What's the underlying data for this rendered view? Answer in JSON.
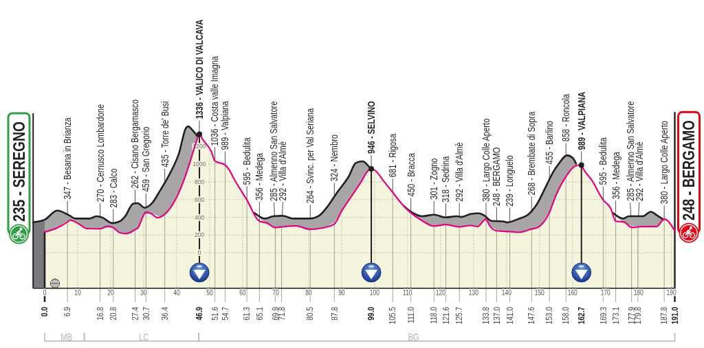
{
  "chart_data": {
    "type": "line",
    "xlim": [
      -3.5,
      191
    ],
    "ylim": [
      -400,
      2800
    ],
    "xticks": [
      0,
      10,
      20,
      30,
      40,
      50,
      60,
      70,
      80,
      90,
      100,
      110,
      120,
      130,
      140,
      150,
      160,
      170,
      180,
      190
    ],
    "yticks": [
      0,
      200,
      400,
      600,
      800,
      1000,
      1200
    ],
    "x2lim": [
      -3.5,
      191
    ],
    "x2ticks": [
      {
        "value": 0,
        "label": "0.0"
      },
      6.9,
      16.8,
      20.8,
      27.4,
      30.7,
      36.4,
      46.9,
      51.6,
      54.7,
      61.3,
      65.1,
      69.9,
      71.8,
      80.5,
      87.8,
      {
        "value": 99,
        "label": "99.0"
      },
      105.5,
      {
        "value": 111,
        "label": "111.0"
      },
      {
        "value": 118,
        "label": "118.0"
      },
      121.6,
      125.7,
      133.8,
      {
        "value": 137,
        "label": "137.0"
      },
      {
        "value": 141,
        "label": "141.0"
      },
      147.6,
      {
        "value": 153,
        "label": "153.0"
      },
      {
        "value": 158,
        "label": "158.0"
      },
      162.7,
      169.3,
      173.1,
      177.9,
      179.8,
      187.8,
      {
        "value": 191,
        "label": "191.0"
      }
    ],
    "grid": true,
    "series": [
      {
        "color": "#231f20",
        "x": [
          -3.5,
          0,
          3.8,
          7.3,
          9.4,
          13.6,
          15.7,
          17.4,
          20.5,
          22.6,
          24.4,
          26.8,
          28.2,
          30.3,
          32.4,
          35.1,
          37.9,
          40.7,
          42.8,
          43.5,
          44.9,
          46.3,
          47.0,
          63.6,
          66.8,
          69.3,
          72.0,
          75.5,
          80.4,
          83.2,
          85.3,
          88.7,
          92.2,
          94.3,
          96.4,
          97.8,
          98.8,
          99.5,
          108.9,
          111.0,
          114.5,
          118.0,
          121.5,
          124.9,
          126.3,
          129.1,
          131.5,
          133.3,
          135.4,
          139.2,
          140.2,
          143.7,
          146.5,
          149.3,
          152.1,
          154.2,
          155.6,
          158.4,
          160.1,
          161.1,
          162.0,
          172.3,
          175.4,
          177.1,
          181.3,
          183.7,
          185.5,
          187.6
        ],
        "values": [
          345,
          373,
          476,
          425,
          386,
          386,
          412,
          399,
          334,
          352,
          412,
          554,
          559,
          507,
          554,
          709,
          889,
          1121,
          1404,
          1425,
          1378,
          1314,
          null,
          450,
          386,
          412,
          417,
          386,
          386,
          419,
          500,
          683,
          863,
          1013,
          1031,
          992,
          950,
          null,
          527,
          463,
          412,
          430,
          399,
          412,
          404,
          437,
          445,
          420,
          360,
          352,
          342,
          384,
          430,
          554,
          760,
          914,
          992,
          1098,
          1068,
          1004,
          null,
          450,
          386,
          412,
          412,
          463,
          425,
          373
        ],
        "lower": [
          null,
          235,
          280,
          358,
          342,
          272,
          271,
          278,
          286,
          229,
          218,
          252,
          280,
          430,
          440,
          413,
          508,
          692,
          885,
          963,
          1125,
          1282,
          null,
          450,
          340,
          297,
          293,
          301,
          265,
          277,
          292,
          383,
          592,
          708,
          827,
          910,
          942,
          null,
          527,
          450,
          360,
          301,
          317,
          297,
          295,
          308,
          306,
          364,
          293,
          243,
          241,
          231,
          258,
          283,
          413,
          572,
          689,
          875,
          947,
          979,
          null,
          433,
          347,
          307,
          296,
          296,
          296,
          373
        ],
        "upper": [
          null,
          373,
          476,
          425,
          386,
          386,
          412,
          399,
          334,
          352,
          412,
          554,
          559,
          507,
          554,
          709,
          889,
          1121,
          1404,
          1425,
          1378,
          1314,
          null,
          450,
          386,
          412,
          417,
          386,
          386,
          419,
          500,
          683,
          863,
          1013,
          1031,
          992,
          950,
          null,
          527,
          463,
          412,
          430,
          399,
          412,
          404,
          437,
          445,
          420,
          360,
          352,
          342,
          384,
          430,
          554,
          760,
          914,
          992,
          1098,
          1068,
          1004,
          null,
          450,
          386,
          412,
          412,
          463,
          425,
          373
        ]
      },
      {
        "color": "#e5007e",
        "x": [
          0,
          3.8,
          6.9,
          7.7,
          10.1,
          12.9,
          16.8,
          19.1,
          20.8,
          22.6,
          24.7,
          27.4,
          28.2,
          30.7,
          32.4,
          34.1,
          36.4,
          39.3,
          42.1,
          44.2,
          45.9,
          46.9,
          48.0,
          50.5,
          51.6,
          54.7,
          56.0,
          57.4,
          61.3,
          65.1,
          67.5,
          69.9,
          71.8,
          76.2,
          80.5,
          84.6,
          87.8,
          90.1,
          92.9,
          95.7,
          98.1,
          99.0,
          100.2,
          102.7,
          105.5,
          108.2,
          111.0,
          114.5,
          118.0,
          121.6,
          125.7,
          129.1,
          131.2,
          133.8,
          134.8,
          137.0,
          141.0,
          143.7,
          147.6,
          149.3,
          153.0,
          154.9,
          158.0,
          160.8,
          162.7,
          163.2,
          166.0,
          169.3,
          171.6,
          173.1,
          175.7,
          177.9,
          179.8,
          181.3,
          185.5,
          187.8,
          191.0
        ],
        "values": [
          235,
          280,
          347,
          368,
          332,
          273,
          270,
          299,
          283,
          229,
          216,
          262,
          280,
          459,
          440,
          396,
          435,
          577,
          808,
          1040,
          1246,
          1336,
          1272,
          1143,
          1036,
          989,
          930,
          834,
          595,
          356,
          334,
          285,
          292,
          303,
          264,
          283,
          324,
          476,
          631,
          786,
          928,
          946,
          928,
          812,
          681,
          554,
          450,
          360,
          301,
          318,
          292,
          308,
          296,
          380,
          310,
          248,
          239,
          231,
          268,
          283,
          455,
          640,
          858,
          977,
          989,
          952,
          810,
          595,
          500,
          356,
          346,
          285,
          292,
          296,
          296,
          380,
          248
        ]
      }
    ],
    "ref_lines": [
      {
        "axis": "x",
        "value": 46.9,
        "color": "#231f20"
      },
      {
        "axis": "x",
        "value": 99.0,
        "color": "#231f20"
      },
      {
        "axis": "x",
        "value": 162.7,
        "color": "#231f20"
      },
      {
        "axis": "x2",
        "value": 6.9,
        "color": "#8c8c8c"
      },
      {
        "axis": "x2",
        "value": 16.8,
        "color": "#8c8c8c"
      },
      {
        "axis": "x2",
        "value": 20.8,
        "color": "#8c8c8c"
      },
      {
        "axis": "x2",
        "value": 27.4,
        "color": "#8c8c8c"
      },
      {
        "axis": "x2",
        "value": 30.7,
        "color": "#8c8c8c"
      },
      {
        "axis": "x2",
        "value": 36.4,
        "color": "#8c8c8c"
      },
      {
        "axis": "x2",
        "value": 51.6,
        "color": "#8c8c8c"
      },
      {
        "axis": "x2",
        "value": 54.7,
        "color": "#8c8c8c"
      },
      {
        "axis": "x2",
        "value": 61.3,
        "color": "#8c8c8c"
      },
      {
        "axis": "x2",
        "value": 65.1,
        "color": "#8c8c8c"
      },
      {
        "axis": "x2",
        "value": 69.9,
        "color": "#8c8c8c"
      },
      {
        "axis": "x2",
        "value": 71.8,
        "color": "#8c8c8c"
      },
      {
        "axis": "x2",
        "value": 80.5,
        "color": "#8c8c8c"
      },
      {
        "axis": "x2",
        "value": 87.8,
        "color": "#8c8c8c"
      },
      {
        "axis": "x2",
        "value": 105.5,
        "color": "#8c8c8c"
      },
      {
        "axis": "x2",
        "value": 111.0,
        "color": "#8c8c8c"
      },
      {
        "axis": "x2",
        "value": 118.0,
        "color": "#8c8c8c"
      },
      {
        "axis": "x2",
        "value": 121.6,
        "color": "#8c8c8c"
      },
      {
        "axis": "x2",
        "value": 125.7,
        "color": "#8c8c8c"
      },
      {
        "axis": "x2",
        "value": 133.8,
        "color": "#8c8c8c"
      },
      {
        "axis": "x2",
        "value": 137.0,
        "color": "#8c8c8c"
      },
      {
        "axis": "x2",
        "value": 141.0,
        "color": "#8c8c8c"
      },
      {
        "axis": "x2",
        "value": 147.6,
        "color": "#8c8c8c"
      },
      {
        "axis": "x2",
        "value": 153.0,
        "color": "#8c8c8c"
      },
      {
        "axis": "x2",
        "value": 158.0,
        "color": "#8c8c8c"
      },
      {
        "axis": "x2",
        "value": 169.3,
        "color": "#8c8c8c"
      },
      {
        "axis": "x2",
        "value": 173.1,
        "color": "#8c8c8c"
      },
      {
        "axis": "x2",
        "value": 177.9,
        "color": "#8c8c8c"
      },
      {
        "axis": "x2",
        "value": 179.8,
        "color": "#8c8c8c"
      },
      {
        "axis": "x2",
        "value": 187.8,
        "color": "#8c8c8c"
      }
    ],
    "annotations": [
      {
        "text": "235 - SEREGNO",
        "x": 0,
        "y": 235
      },
      {
        "text": "347 - Besana in Brianza",
        "x": 6.9,
        "y": 347
      },
      {
        "text": "270 - Cernusco Lombardone",
        "x": 16.8,
        "y": 270
      },
      {
        "text": "283 - Calco",
        "x": 20.8,
        "y": 283
      },
      {
        "text": "262 - Cisano Bergamasco",
        "x": 27.4,
        "y": 262
      },
      {
        "text": "459 - San Gregorio",
        "x": 30.7,
        "y": 459
      },
      {
        "text": "435 - Torre de' Busi",
        "x": 36.4,
        "y": 435
      },
      {
        "text": "1336 - VALICO DI VALCAVA",
        "x": 46.9,
        "y": 1336
      },
      {
        "text": "1036 - Costa valle Imagna",
        "x": 51.6,
        "y": 1036
      },
      {
        "text": "989 - Valpiana",
        "x": 54.7,
        "y": 989
      },
      {
        "text": "595 - Bedulita",
        "x": 61.3,
        "y": 595
      },
      {
        "text": "356 - Medega",
        "x": 65.1,
        "y": 356
      },
      {
        "text": "285 - Almenno San Salvatore",
        "x": 69.9,
        "y": 285
      },
      {
        "text": "292 - Villa d'Almè",
        "x": 71.8,
        "y": 292
      },
      {
        "text": "264 - Svinc. per Val Seriana",
        "x": 80.5,
        "y": 264
      },
      {
        "text": "324 - Nembro",
        "x": 87.8,
        "y": 324
      },
      {
        "text": "946 - SELVINO",
        "x": 99.0,
        "y": 946
      },
      {
        "text": "681 - Rigosa",
        "x": 105.5,
        "y": 681
      },
      {
        "text": "450 - Bracca",
        "x": 111.0,
        "y": 450
      },
      {
        "text": "301 - Zogno",
        "x": 118.0,
        "y": 301
      },
      {
        "text": "318 - Sedrina",
        "x": 121.6,
        "y": 318
      },
      {
        "text": "292 - Villa d'Almè",
        "x": 125.7,
        "y": 292
      },
      {
        "text": "380 - Largo Colle Aperto",
        "x": 133.8,
        "y": 380
      },
      {
        "text": "248 - BERGAMO",
        "x": 137.0,
        "y": 248
      },
      {
        "text": "239 - Longuelo",
        "x": 141.0,
        "y": 239
      },
      {
        "text": "268 - Brembate di Sopra",
        "x": 147.6,
        "y": 268
      },
      {
        "text": "455 - Barlino",
        "x": 153.0,
        "y": 455
      },
      {
        "text": "858 - Roncola",
        "x": 158.0,
        "y": 858
      },
      {
        "text": "989 - VALPIANA",
        "x": 162.7,
        "y": 989
      },
      {
        "text": "595 - Bedulita",
        "x": 169.3,
        "y": 595
      },
      {
        "text": "356 - Medega",
        "x": 173.1,
        "y": 356
      },
      {
        "text": "285 - Almenno San Salvatore",
        "x": 177.9,
        "y": 285
      },
      {
        "text": "292 - Villa d'Almè",
        "x": 179.8,
        "y": 292
      },
      {
        "text": "380 - Largo Colle Aperto",
        "x": 187.8,
        "y": 380
      },
      {
        "text": "248 - BERGAMO",
        "x": 191.0,
        "y": 248
      },
      "MB",
      "LC",
      "BG"
    ]
  }
}
